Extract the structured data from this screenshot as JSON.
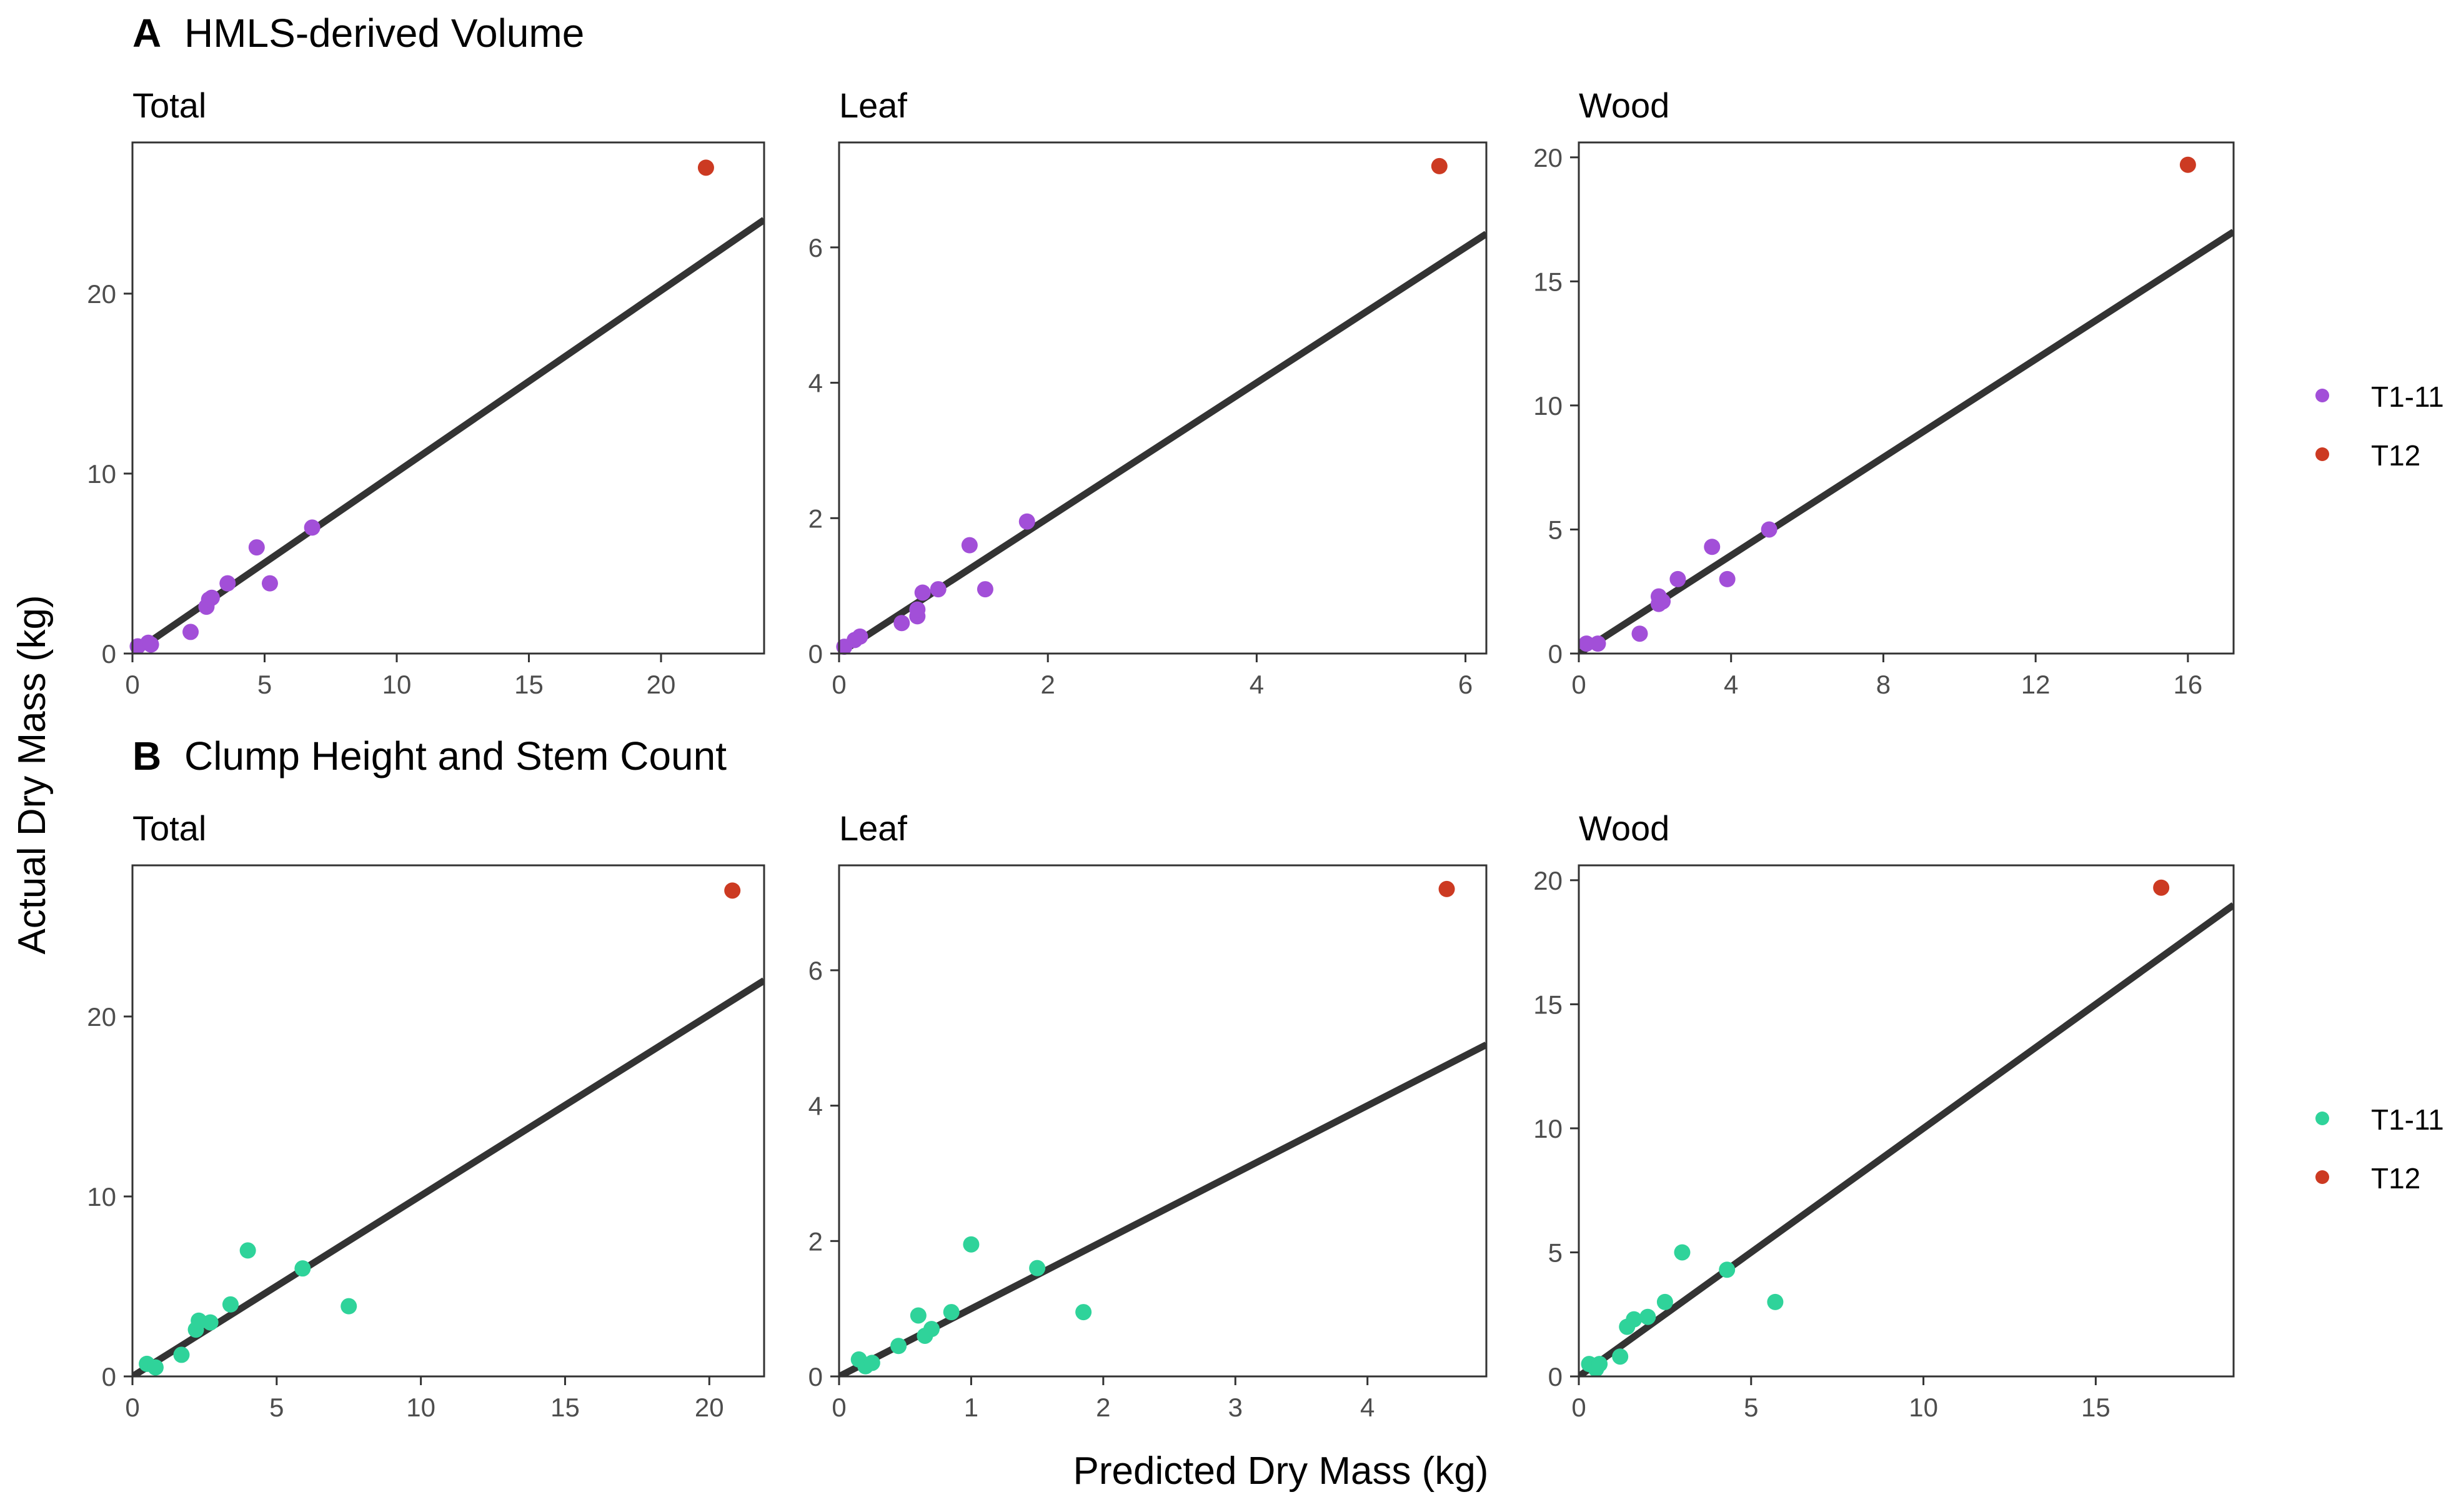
{
  "figure": {
    "y_axis_label": "Actual Dry Mass (kg)",
    "x_axis_label": "Predicted Dry Mass (kg)",
    "colors": {
      "T1-11_A": "#a24fd8",
      "T1-11_B": "#2fd39a",
      "T12": "#cc3a22",
      "line": "#333333",
      "axis_text": "#4d4d4d"
    }
  },
  "rows": [
    {
      "tag": "A",
      "title": "HMLS-derived Volume",
      "legend": [
        {
          "label": "T1-11",
          "color": "#a24fd8"
        },
        {
          "label": "T12",
          "color": "#cc3a22"
        }
      ]
    },
    {
      "tag": "B",
      "title": "Clump Height and Stem Count",
      "legend": [
        {
          "label": "T1-11",
          "color": "#2fd39a"
        },
        {
          "label": "T12",
          "color": "#cc3a22"
        }
      ]
    }
  ],
  "chart_data": [
    {
      "type": "scatter",
      "panel": "A-Total",
      "title": "Total",
      "xlim": [
        0,
        23.9
      ],
      "ylim": [
        0,
        28.4
      ],
      "xticks": [
        0,
        5,
        10,
        15,
        20
      ],
      "yticks": [
        0,
        10,
        20
      ],
      "fit_line": {
        "x": [
          0,
          23.9
        ],
        "y": [
          0,
          24.1
        ]
      },
      "series": [
        {
          "name": "T1-11",
          "color": "#a24fd8",
          "points": [
            [
              0.2,
              0.4
            ],
            [
              0.6,
              0.6
            ],
            [
              0.7,
              0.5
            ],
            [
              2.2,
              1.2
            ],
            [
              2.8,
              2.6
            ],
            [
              2.9,
              3.0
            ],
            [
              3.0,
              3.1
            ],
            [
              3.6,
              3.9
            ],
            [
              4.7,
              5.9
            ],
            [
              5.2,
              3.9
            ],
            [
              6.8,
              7.0
            ]
          ]
        },
        {
          "name": "T12",
          "color": "#cc3a22",
          "points": [
            [
              21.7,
              27.0
            ]
          ]
        }
      ]
    },
    {
      "type": "scatter",
      "panel": "A-Leaf",
      "title": "Leaf",
      "xlim": [
        0,
        6.2
      ],
      "ylim": [
        0,
        7.55
      ],
      "xticks": [
        0,
        2,
        4,
        6
      ],
      "yticks": [
        0,
        2,
        4,
        6
      ],
      "fit_line": {
        "x": [
          0,
          6.2
        ],
        "y": [
          0,
          6.2
        ]
      },
      "series": [
        {
          "name": "T1-11",
          "color": "#a24fd8",
          "points": [
            [
              0.05,
              0.1
            ],
            [
              0.15,
              0.2
            ],
            [
              0.2,
              0.25
            ],
            [
              0.6,
              0.45
            ],
            [
              0.75,
              0.55
            ],
            [
              0.75,
              0.65
            ],
            [
              0.8,
              0.9
            ],
            [
              0.95,
              0.95
            ],
            [
              1.25,
              1.6
            ],
            [
              1.4,
              0.95
            ],
            [
              1.8,
              1.95
            ]
          ]
        },
        {
          "name": "T12",
          "color": "#cc3a22",
          "points": [
            [
              5.75,
              7.2
            ]
          ]
        }
      ]
    },
    {
      "type": "scatter",
      "panel": "A-Wood",
      "title": "Wood",
      "xlim": [
        0,
        17.2
      ],
      "ylim": [
        0,
        20.6
      ],
      "xticks": [
        0,
        4,
        8,
        12,
        16
      ],
      "yticks": [
        0,
        5,
        10,
        15,
        20
      ],
      "fit_line": {
        "x": [
          0,
          17.2
        ],
        "y": [
          0,
          17.0
        ]
      },
      "series": [
        {
          "name": "T1-11",
          "color": "#a24fd8",
          "points": [
            [
              0.2,
              0.4
            ],
            [
              0.5,
              0.4
            ],
            [
              1.6,
              0.8
            ],
            [
              2.1,
              2.0
            ],
            [
              2.1,
              2.3
            ],
            [
              2.2,
              2.1
            ],
            [
              2.6,
              3.0
            ],
            [
              3.5,
              4.3
            ],
            [
              3.9,
              3.0
            ],
            [
              5.0,
              5.0
            ]
          ]
        },
        {
          "name": "T12",
          "color": "#cc3a22",
          "points": [
            [
              16.0,
              19.7
            ]
          ]
        }
      ]
    },
    {
      "type": "scatter",
      "panel": "B-Total",
      "title": "Total",
      "xlim": [
        0,
        21.9
      ],
      "ylim": [
        0,
        28.4
      ],
      "xticks": [
        0,
        5,
        10,
        15,
        20
      ],
      "yticks": [
        0,
        10,
        20
      ],
      "fit_line": {
        "x": [
          0,
          21.9
        ],
        "y": [
          0,
          22.0
        ]
      },
      "series": [
        {
          "name": "T1-11",
          "color": "#2fd39a",
          "points": [
            [
              0.5,
              0.7
            ],
            [
              0.8,
              0.5
            ],
            [
              1.7,
              1.2
            ],
            [
              2.2,
              2.6
            ],
            [
              2.3,
              3.1
            ],
            [
              2.7,
              3.0
            ],
            [
              3.4,
              4.0
            ],
            [
              4.0,
              7.0
            ],
            [
              5.9,
              6.0
            ],
            [
              7.5,
              3.9
            ]
          ]
        },
        {
          "name": "T12",
          "color": "#cc3a22",
          "points": [
            [
              20.8,
              27.0
            ]
          ]
        }
      ]
    },
    {
      "type": "scatter",
      "panel": "B-Leaf",
      "title": "Leaf",
      "xlim": [
        0,
        4.9
      ],
      "ylim": [
        0,
        7.55
      ],
      "xticks": [
        0,
        1,
        2,
        3,
        4
      ],
      "yticks": [
        0,
        2,
        4,
        6
      ],
      "fit_line": {
        "x": [
          0,
          4.9
        ],
        "y": [
          0,
          4.9
        ]
      },
      "series": [
        {
          "name": "T1-11",
          "color": "#2fd39a",
          "points": [
            [
              0.15,
              0.25
            ],
            [
              0.2,
              0.15
            ],
            [
              0.25,
              0.2
            ],
            [
              0.45,
              0.45
            ],
            [
              0.6,
              0.9
            ],
            [
              0.65,
              0.6
            ],
            [
              0.7,
              0.7
            ],
            [
              0.85,
              0.95
            ],
            [
              1.0,
              1.95
            ],
            [
              1.5,
              1.6
            ],
            [
              1.85,
              0.95
            ]
          ]
        },
        {
          "name": "T12",
          "color": "#cc3a22",
          "points": [
            [
              4.6,
              7.2
            ]
          ]
        }
      ]
    },
    {
      "type": "scatter",
      "panel": "B-Wood",
      "title": "Wood",
      "xlim": [
        0,
        19.0
      ],
      "ylim": [
        0,
        20.6
      ],
      "xticks": [
        0,
        5,
        10,
        15
      ],
      "yticks": [
        0,
        5,
        10,
        15,
        20
      ],
      "fit_line": {
        "x": [
          0,
          19.0
        ],
        "y": [
          0,
          19.0
        ]
      },
      "series": [
        {
          "name": "T1-11",
          "color": "#2fd39a",
          "points": [
            [
              0.3,
              0.5
            ],
            [
              0.5,
              0.3
            ],
            [
              0.6,
              0.5
            ],
            [
              1.2,
              0.8
            ],
            [
              1.4,
              2.0
            ],
            [
              1.6,
              2.3
            ],
            [
              2.0,
              2.4
            ],
            [
              2.5,
              3.0
            ],
            [
              3.0,
              5.0
            ],
            [
              4.3,
              4.3
            ],
            [
              5.7,
              3.0
            ]
          ]
        },
        {
          "name": "T12",
          "color": "#cc3a22",
          "points": [
            [
              16.9,
              19.7
            ]
          ]
        }
      ]
    }
  ]
}
